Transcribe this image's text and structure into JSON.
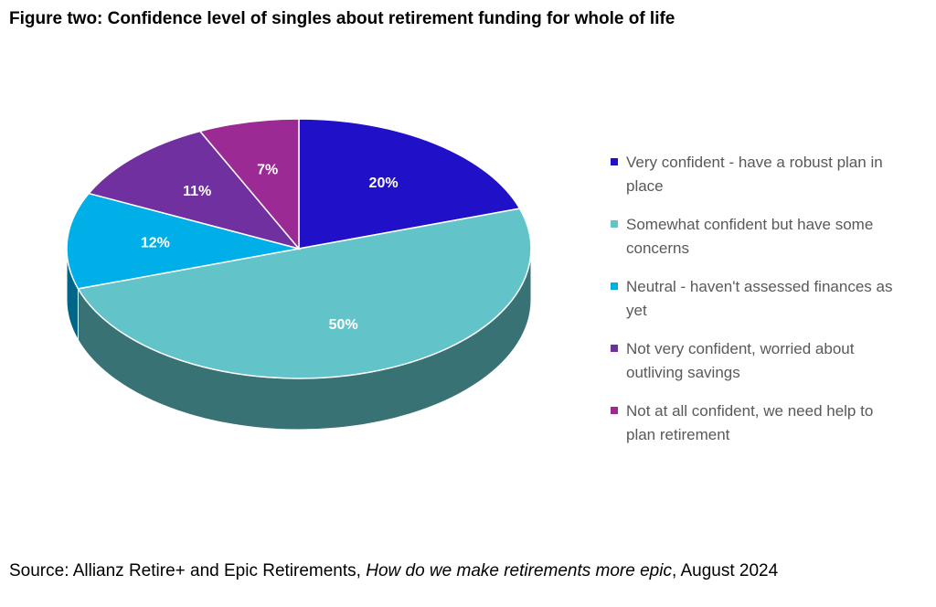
{
  "chart_data": {
    "type": "pie",
    "title": "Figure two: Confidence level of singles about retirement funding for whole of life",
    "categories": [
      "Very confident - have a robust plan in place",
      "Somewhat confident but have some concerns",
      "Neutral - haven't assessed finances as yet",
      "Not very confident, worried about outliving savings",
      "Not at all confident, we need help to plan retirement"
    ],
    "values": [
      20,
      50,
      12,
      11,
      7
    ],
    "value_labels": [
      "20%",
      "50%",
      "12%",
      "11%",
      "7%"
    ],
    "colors": [
      "#2010c8",
      "#62c4c9",
      "#00aee8",
      "#7030a0",
      "#9b2a94"
    ],
    "legend": "right",
    "source": [
      "Source: Allianz Retire+ and Epic Retirements, ",
      "How do we make retirements more epic",
      ", August 2024"
    ]
  }
}
